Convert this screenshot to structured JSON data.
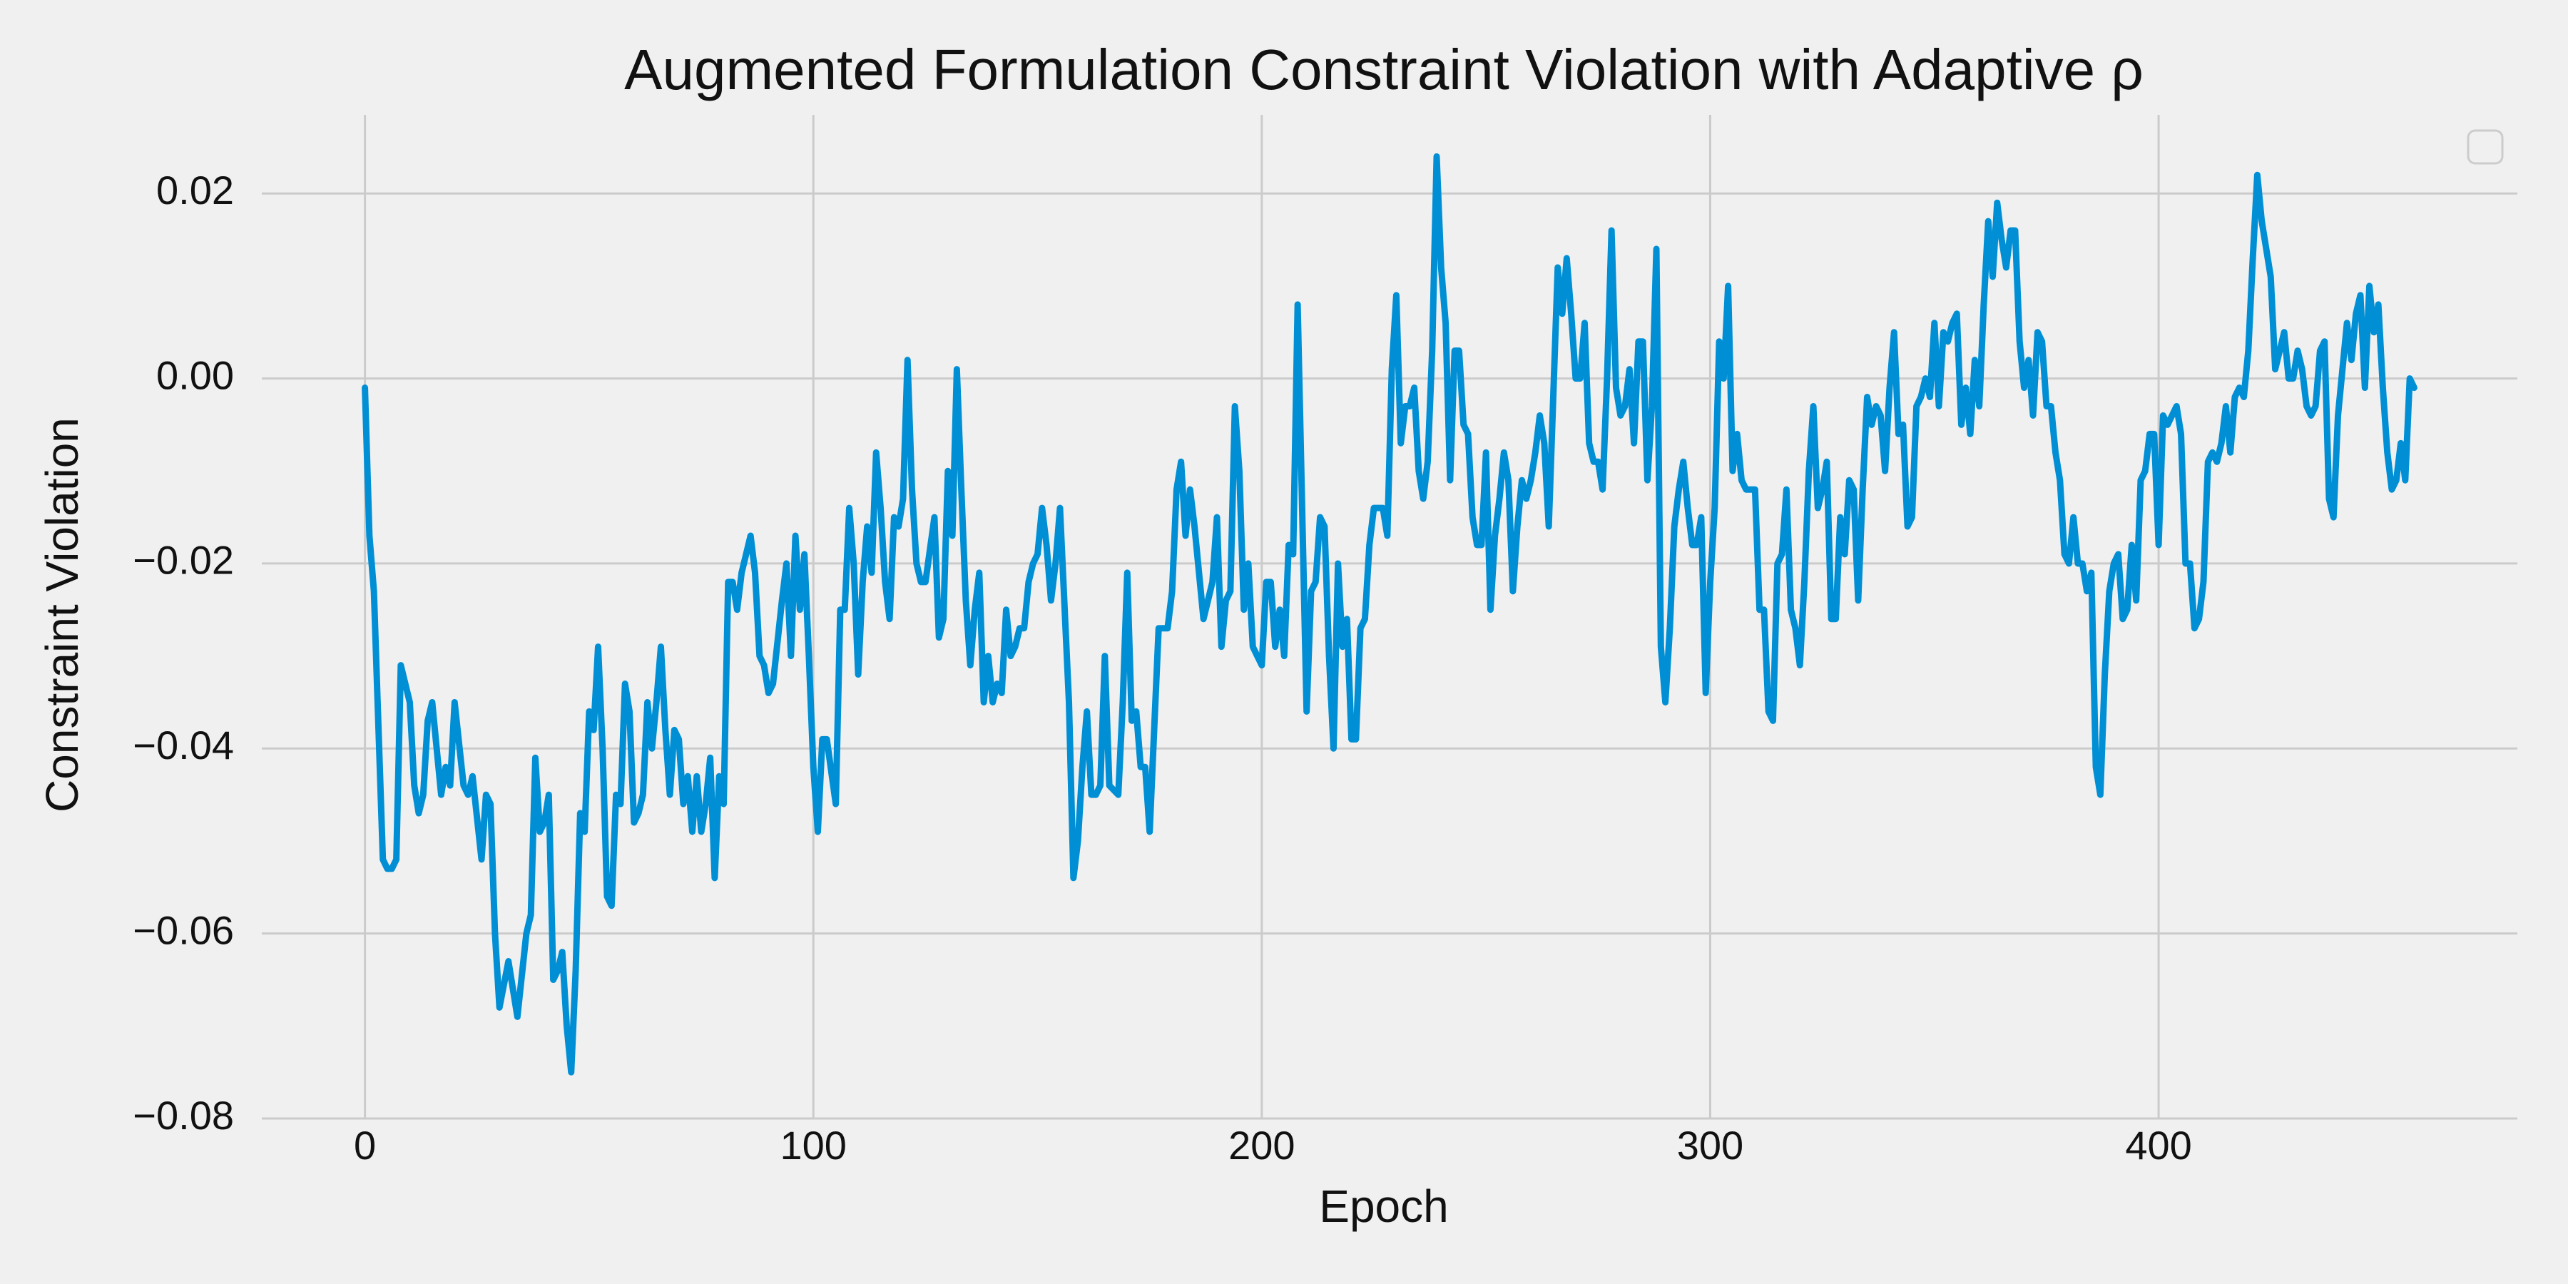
{
  "chart_data": {
    "type": "line",
    "title": "Augmented Formulation Constraint Violation with Adaptive ρ",
    "x_label": "Epoch",
    "y_label": "Constraint Violation",
    "grid": true,
    "xlim": [
      -23,
      480
    ],
    "ylim": [
      -0.08,
      0.0285
    ],
    "xticks": [
      0,
      100,
      200,
      300,
      400
    ],
    "yticks": [
      {
        "value": -0.08,
        "label": "−0.08"
      },
      {
        "value": -0.06,
        "label": "−0.06"
      },
      {
        "value": -0.04,
        "label": "−0.04"
      },
      {
        "value": -0.02,
        "label": "−0.02"
      },
      {
        "value": 0,
        "label": "0.00"
      },
      0.02
    ],
    "series": [
      {
        "color": "#008fd5",
        "x": [
          0,
          1,
          2,
          4,
          5,
          6,
          7,
          8,
          10,
          11,
          12,
          13,
          14,
          15,
          17,
          18,
          19,
          20,
          22,
          23,
          24,
          26,
          27,
          28,
          29,
          30,
          32,
          34,
          36,
          37,
          38,
          39,
          40,
          41,
          42,
          43,
          44,
          45,
          46,
          47,
          48,
          49,
          50,
          51,
          52,
          53,
          54,
          55,
          56,
          57,
          58,
          59,
          60,
          61,
          62,
          63,
          64,
          65,
          66,
          67,
          68,
          69,
          70,
          71,
          72,
          73,
          74,
          75,
          76,
          77,
          78,
          79,
          80,
          81,
          82,
          83,
          84,
          86,
          87,
          88,
          89,
          90,
          91,
          93,
          94,
          95,
          96,
          97,
          98,
          99,
          100,
          101,
          102,
          103,
          105,
          106,
          107,
          108,
          109,
          110,
          111,
          112,
          113,
          114,
          115,
          116,
          117,
          118,
          119,
          120,
          121,
          122,
          123,
          124,
          125,
          127,
          128,
          129,
          130,
          131,
          132,
          133,
          134,
          135,
          136,
          137,
          138,
          139,
          140,
          141,
          142,
          143,
          144,
          145,
          146,
          147,
          148,
          149,
          150,
          151,
          152,
          153,
          154,
          155,
          157,
          158,
          159,
          160,
          161,
          162,
          163,
          164,
          165,
          166,
          168,
          169,
          170,
          171,
          172,
          173,
          174,
          175,
          176,
          177,
          178,
          179,
          180,
          181,
          182,
          183,
          184,
          185,
          186,
          187,
          188,
          189,
          190,
          191,
          192,
          193,
          194,
          195,
          196,
          197,
          198,
          199,
          200,
          201,
          202,
          203,
          204,
          205,
          206,
          207,
          208,
          210,
          211,
          212,
          213,
          214,
          215,
          216,
          217,
          218,
          219,
          220,
          221,
          222,
          223,
          224,
          225,
          226,
          227,
          228,
          229,
          230,
          231,
          232,
          233,
          234,
          235,
          236,
          237,
          238,
          239,
          240,
          241,
          242,
          243,
          244,
          245,
          246,
          247,
          248,
          249,
          250,
          251,
          252,
          253,
          254,
          255,
          256,
          257,
          258,
          259,
          260,
          261,
          262,
          263,
          264,
          265,
          266,
          267,
          268,
          269,
          270,
          271,
          272,
          273,
          274,
          275,
          276,
          277,
          278,
          279,
          280,
          281,
          282,
          283,
          284,
          285,
          286,
          287,
          288,
          289,
          290,
          291,
          292,
          293,
          294,
          295,
          296,
          297,
          298,
          299,
          300,
          301,
          302,
          303,
          304,
          305,
          306,
          307,
          308,
          309,
          310,
          311,
          312,
          313,
          314,
          315,
          316,
          317,
          318,
          319,
          320,
          321,
          322,
          323,
          324,
          325,
          326,
          327,
          328,
          329,
          330,
          331,
          332,
          333,
          334,
          335,
          336,
          337,
          338,
          339,
          340,
          341,
          342,
          343,
          344,
          345,
          346,
          347,
          348,
          349,
          350,
          351,
          352,
          353,
          354,
          355,
          356,
          357,
          358,
          359,
          360,
          361,
          362,
          363,
          364,
          365,
          366,
          367,
          368,
          369,
          370,
          371,
          372,
          373,
          374,
          375,
          376,
          377,
          378,
          379,
          380,
          381,
          382,
          383,
          384,
          385,
          386,
          387,
          388,
          389,
          390,
          391,
          392,
          393,
          394,
          395,
          396,
          397,
          398,
          399,
          400,
          401,
          402,
          403,
          404,
          405,
          406,
          407,
          408,
          409,
          410,
          411,
          412,
          413,
          414,
          415,
          416,
          417,
          418,
          419,
          420,
          421,
          422,
          423,
          424,
          425,
          426,
          427,
          428,
          429,
          430,
          431,
          432,
          433,
          434,
          435,
          436,
          437,
          438,
          439,
          440,
          441,
          442,
          443,
          444,
          445,
          446,
          447,
          448,
          449,
          450,
          451,
          452,
          453,
          454,
          455,
          456,
          457
        ],
        "values": [
          -0.001,
          -0.017,
          -0.023,
          -0.052,
          -0.053,
          -0.053,
          -0.052,
          -0.031,
          -0.035,
          -0.044,
          -0.047,
          -0.045,
          -0.037,
          -0.035,
          -0.045,
          -0.042,
          -0.044,
          -0.035,
          -0.044,
          -0.045,
          -0.043,
          -0.052,
          -0.045,
          -0.046,
          -0.06,
          -0.068,
          -0.063,
          -0.069,
          -0.06,
          -0.058,
          -0.041,
          -0.049,
          -0.048,
          -0.045,
          -0.065,
          -0.064,
          -0.062,
          -0.07,
          -0.075,
          -0.064,
          -0.047,
          -0.049,
          -0.036,
          -0.038,
          -0.029,
          -0.04,
          -0.056,
          -0.057,
          -0.045,
          -0.046,
          -0.033,
          -0.036,
          -0.048,
          -0.047,
          -0.045,
          -0.035,
          -0.04,
          -0.035,
          -0.029,
          -0.038,
          -0.045,
          -0.038,
          -0.039,
          -0.046,
          -0.043,
          -0.049,
          -0.043,
          -0.049,
          -0.046,
          -0.041,
          -0.054,
          -0.043,
          -0.046,
          -0.022,
          -0.022,
          -0.025,
          -0.021,
          -0.017,
          -0.021,
          -0.03,
          -0.031,
          -0.034,
          -0.033,
          -0.024,
          -0.02,
          -0.03,
          -0.017,
          -0.025,
          -0.019,
          -0.03,
          -0.042,
          -0.049,
          -0.039,
          -0.039,
          -0.046,
          -0.025,
          -0.025,
          -0.014,
          -0.02,
          -0.032,
          -0.022,
          -0.016,
          -0.021,
          -0.008,
          -0.014,
          -0.022,
          -0.026,
          -0.015,
          -0.016,
          -0.013,
          0.002,
          -0.012,
          -0.02,
          -0.022,
          -0.022,
          -0.015,
          -0.028,
          -0.026,
          -0.01,
          -0.017,
          0.001,
          -0.012,
          -0.024,
          -0.031,
          -0.025,
          -0.021,
          -0.035,
          -0.03,
          -0.035,
          -0.033,
          -0.034,
          -0.025,
          -0.03,
          -0.029,
          -0.027,
          -0.027,
          -0.022,
          -0.02,
          -0.019,
          -0.014,
          -0.018,
          -0.024,
          -0.02,
          -0.014,
          -0.035,
          -0.054,
          -0.05,
          -0.042,
          -0.036,
          -0.045,
          -0.045,
          -0.044,
          -0.03,
          -0.044,
          -0.045,
          -0.035,
          -0.021,
          -0.037,
          -0.036,
          -0.042,
          -0.042,
          -0.049,
          -0.038,
          -0.027,
          -0.027,
          -0.027,
          -0.023,
          -0.012,
          -0.009,
          -0.017,
          -0.012,
          -0.016,
          -0.021,
          -0.026,
          -0.024,
          -0.022,
          -0.015,
          -0.029,
          -0.024,
          -0.023,
          -0.003,
          -0.01,
          -0.025,
          -0.02,
          -0.029,
          -0.03,
          -0.031,
          -0.022,
          -0.022,
          -0.029,
          -0.025,
          -0.03,
          -0.018,
          -0.019,
          0.008,
          -0.036,
          -0.023,
          -0.022,
          -0.015,
          -0.016,
          -0.03,
          -0.04,
          -0.02,
          -0.029,
          -0.026,
          -0.039,
          -0.039,
          -0.027,
          -0.026,
          -0.018,
          -0.014,
          -0.014,
          -0.014,
          -0.017,
          0.001,
          0.009,
          -0.007,
          -0.003,
          -0.003,
          -0.001,
          -0.01,
          -0.013,
          -0.009,
          0.003,
          0.024,
          0.012,
          0.006,
          -0.011,
          0.003,
          0.003,
          -0.005,
          -0.006,
          -0.015,
          -0.018,
          -0.018,
          -0.008,
          -0.025,
          -0.017,
          -0.013,
          -0.008,
          -0.011,
          -0.023,
          -0.016,
          -0.011,
          -0.013,
          -0.011,
          -0.008,
          -0.004,
          -0.007,
          -0.016,
          -0.002,
          0.012,
          0.007,
          0.013,
          0.007,
          0.0,
          0.0,
          0.006,
          -0.007,
          -0.009,
          -0.009,
          -0.012,
          0.0,
          0.016,
          -0.001,
          -0.004,
          -0.003,
          0.001,
          -0.007,
          0.004,
          0.004,
          -0.011,
          -0.003,
          0.014,
          -0.029,
          -0.035,
          -0.027,
          -0.016,
          -0.012,
          -0.009,
          -0.014,
          -0.018,
          -0.018,
          -0.015,
          -0.034,
          -0.022,
          -0.014,
          0.004,
          0.0,
          0.01,
          -0.01,
          -0.006,
          -0.011,
          -0.012,
          -0.012,
          -0.012,
          -0.025,
          -0.025,
          -0.036,
          -0.037,
          -0.02,
          -0.019,
          -0.012,
          -0.025,
          -0.027,
          -0.031,
          -0.022,
          -0.01,
          -0.003,
          -0.014,
          -0.012,
          -0.009,
          -0.026,
          -0.026,
          -0.015,
          -0.019,
          -0.011,
          -0.012,
          -0.024,
          -0.012,
          -0.002,
          -0.005,
          -0.003,
          -0.004,
          -0.01,
          -0.001,
          0.005,
          -0.006,
          -0.005,
          -0.016,
          -0.015,
          -0.003,
          -0.002,
          0.0,
          -0.002,
          0.006,
          -0.003,
          0.005,
          0.004,
          0.006,
          0.007,
          -0.005,
          -0.001,
          -0.006,
          0.002,
          -0.003,
          0.008,
          0.017,
          0.011,
          0.019,
          0.015,
          0.012,
          0.016,
          0.016,
          0.004,
          -0.001,
          0.002,
          -0.004,
          0.005,
          0.004,
          -0.003,
          -0.003,
          -0.008,
          -0.011,
          -0.019,
          -0.02,
          -0.015,
          -0.02,
          -0.02,
          -0.023,
          -0.021,
          -0.042,
          -0.045,
          -0.032,
          -0.023,
          -0.02,
          -0.019,
          -0.026,
          -0.025,
          -0.018,
          -0.024,
          -0.011,
          -0.01,
          -0.006,
          -0.006,
          -0.018,
          -0.004,
          -0.005,
          -0.004,
          -0.003,
          -0.006,
          -0.02,
          -0.02,
          -0.027,
          -0.026,
          -0.022,
          -0.009,
          -0.008,
          -0.009,
          -0.007,
          -0.003,
          -0.008,
          -0.002,
          -0.001,
          -0.002,
          0.003,
          0.013,
          0.022,
          0.017,
          0.014,
          0.011,
          0.001,
          0.003,
          0.005,
          0.0,
          0.0,
          0.003,
          0.001,
          -0.003,
          -0.004,
          -0.003,
          0.003,
          0.004,
          -0.013,
          -0.015,
          -0.004,
          0.001,
          0.006,
          0.002,
          0.007,
          0.009,
          -0.001,
          0.01,
          0.005,
          0.008,
          -0.001,
          -0.008,
          -0.012,
          -0.011,
          -0.007,
          -0.011,
          0.0,
          -0.001
        ]
      }
    ]
  }
}
